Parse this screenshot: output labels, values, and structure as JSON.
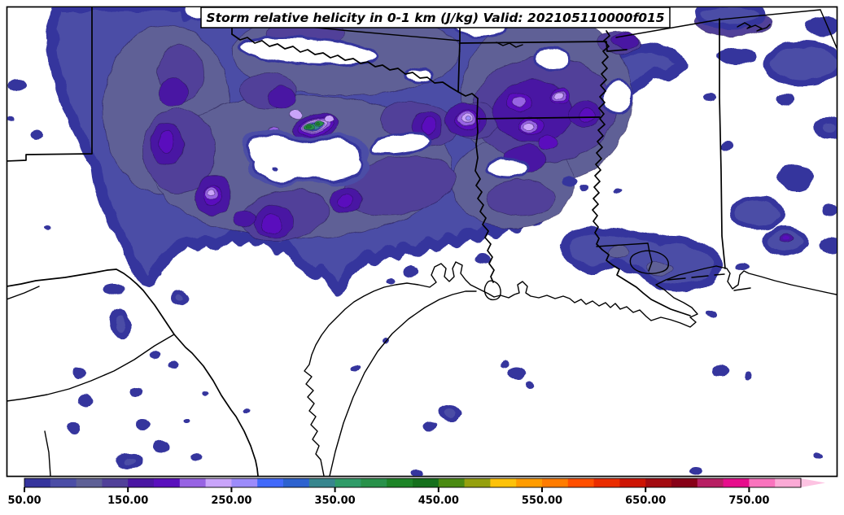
{
  "title": "Storm relative helicity in 0-1 km (J/kg) Valid: 202105110000f015",
  "field": {
    "variable": "Storm relative helicity in 0-1 km",
    "units": "J/kg",
    "valid": "202105110000f015"
  },
  "map": {
    "background_color": "#ffffff",
    "frame_color": "#000000",
    "border_color": "#000000"
  },
  "colorbar": {
    "min": 50,
    "max": 800,
    "interval": 25,
    "tick_values": [
      50,
      150,
      250,
      350,
      450,
      550,
      650,
      750
    ],
    "tick_labels": [
      "50.00",
      "150.00",
      "250.00",
      "350.00",
      "450.00",
      "550.00",
      "650.00",
      "750.00"
    ],
    "colors": [
      "#35349d",
      "#4b4da6",
      "#5e6096",
      "#514099",
      "#4a16a3",
      "#5a10bd",
      "#9763e3",
      "#c9a4fa",
      "#9c8bfb",
      "#4169fa",
      "#2d62cf",
      "#37868e",
      "#2f9b68",
      "#28914a",
      "#1d8427",
      "#15701c",
      "#4a8a12",
      "#95a00e",
      "#fdc20a",
      "#ff9c00",
      "#ff7c00",
      "#ff4f00",
      "#ea2c00",
      "#cd1403",
      "#a30b10",
      "#870117",
      "#b71f63",
      "#e70d8c",
      "#f973bd",
      "#fbaad6"
    ],
    "overflow_arrow_color": "#fdc3e2"
  }
}
